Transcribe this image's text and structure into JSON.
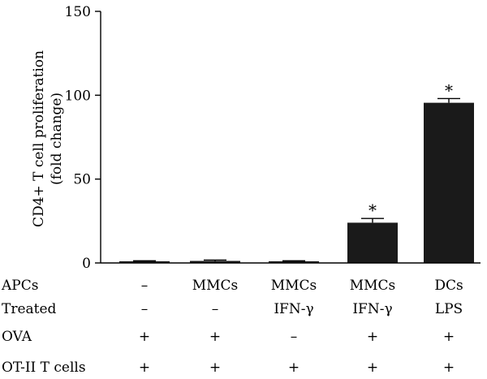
{
  "chart_data": {
    "type": "bar",
    "ylabel_lines": [
      "CD4+ T cell proliferation",
      "(fold change)"
    ],
    "ylim": [
      0,
      150
    ],
    "yticks": [
      0,
      50,
      100,
      150
    ],
    "bar_color": "#1a1a1a",
    "bars": [
      {
        "value": 1,
        "error": 0.3,
        "significance": ""
      },
      {
        "value": 1.2,
        "error": 0.5,
        "significance": ""
      },
      {
        "value": 1,
        "error": 0.3,
        "significance": ""
      },
      {
        "value": 24,
        "error": 2.5,
        "significance": "*"
      },
      {
        "value": 95.5,
        "error": 2.5,
        "significance": "*"
      }
    ],
    "table": [
      {
        "label": "APCs",
        "cells": [
          "–",
          "MMCs",
          "MMCs",
          "MMCs",
          "DCs"
        ]
      },
      {
        "label": "Treated",
        "cells": [
          "–",
          "–",
          "IFN-γ",
          "IFN-γ",
          "LPS"
        ]
      },
      {
        "label": "OVA",
        "cells": [
          "+",
          "+",
          "–",
          "+",
          "+"
        ]
      },
      {
        "label": "OT-II T cells",
        "cells": [
          "+",
          "+",
          "+",
          "+",
          "+"
        ]
      }
    ]
  }
}
